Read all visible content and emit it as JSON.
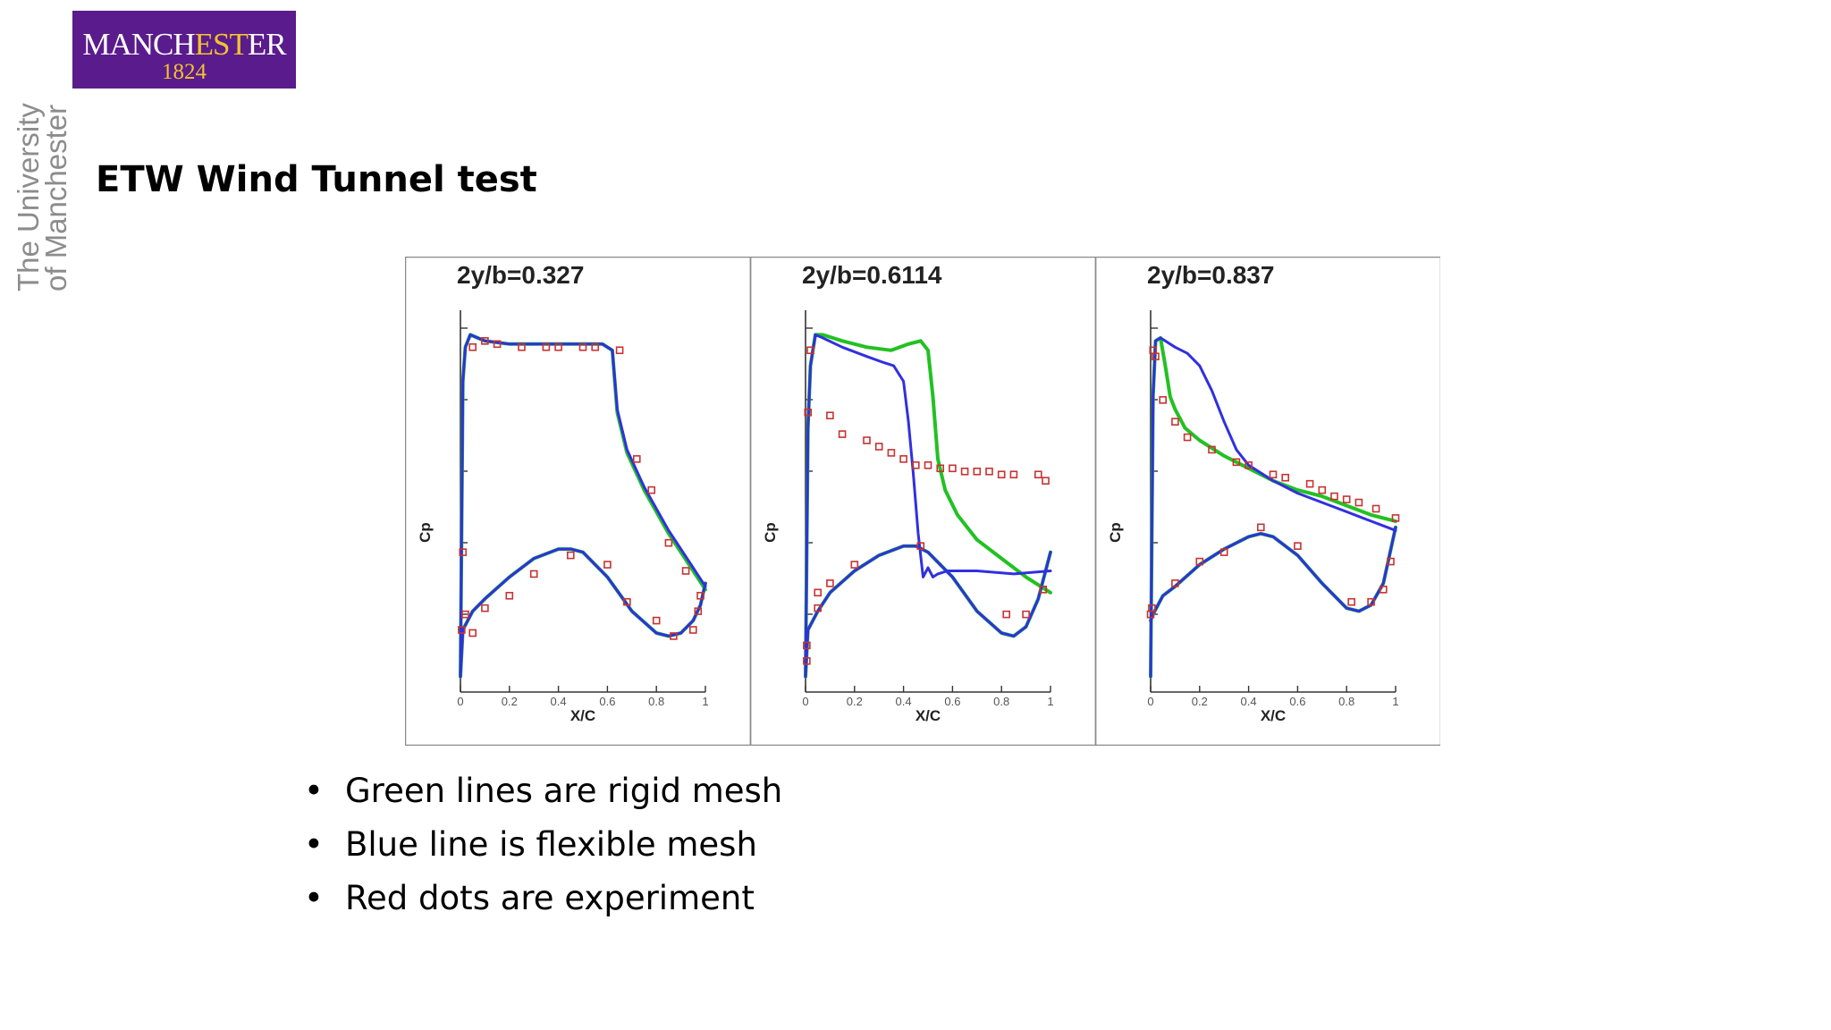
{
  "logo": {
    "name_left": "MANCH",
    "name_mid": "EST",
    "name_right": "ER",
    "year": "1824"
  },
  "side_text": {
    "line1": "The University",
    "line2": "of Manchester"
  },
  "slide_title": "ETW Wind Tunnel test",
  "bullets": [
    "Green lines are rigid mesh",
    "Blue line is flexible mesh",
    "Red dots are experiment"
  ],
  "colors": {
    "rigid": "#22c122",
    "flexible": "#3030e0",
    "experiment": "#c83232",
    "logo_bg": "#5a1b8c"
  },
  "chart_data": [
    {
      "type": "line",
      "title": "2y/b=0.327",
      "xlabel": "X/C",
      "ylabel": "Cp",
      "xlim": [
        0,
        1
      ],
      "xticks": [
        "0",
        "0.2",
        "0.4",
        "0.6",
        "0.8",
        "1"
      ],
      "grid": false,
      "series": [
        {
          "kind": "rigid-upper",
          "x": [
            0,
            0.01,
            0.02,
            0.04,
            0.07,
            0.1,
            0.2,
            0.3,
            0.4,
            0.5,
            0.58,
            0.62,
            0.64,
            0.68,
            0.75,
            0.85,
            0.95,
            1.0
          ],
          "y": [
            -0.1,
            0.85,
            0.96,
            1.0,
            0.99,
            0.98,
            0.97,
            0.97,
            0.97,
            0.97,
            0.97,
            0.95,
            0.75,
            0.62,
            0.5,
            0.36,
            0.24,
            0.18
          ]
        },
        {
          "kind": "rigid-lower",
          "x": [
            0,
            0.01,
            0.05,
            0.1,
            0.2,
            0.3,
            0.4,
            0.45,
            0.5,
            0.6,
            0.7,
            0.8,
            0.85,
            0.9,
            0.95,
            0.98,
            1.0
          ],
          "y": [
            -0.1,
            0.05,
            0.11,
            0.15,
            0.22,
            0.28,
            0.31,
            0.31,
            0.3,
            0.22,
            0.11,
            0.04,
            0.03,
            0.04,
            0.08,
            0.13,
            0.2
          ]
        },
        {
          "kind": "flexible-upper",
          "x": [
            0,
            0.01,
            0.02,
            0.04,
            0.07,
            0.1,
            0.2,
            0.3,
            0.4,
            0.5,
            0.58,
            0.62,
            0.64,
            0.68,
            0.75,
            0.85,
            0.95,
            1.0
          ],
          "y": [
            -0.1,
            0.85,
            0.96,
            1.0,
            0.99,
            0.98,
            0.97,
            0.97,
            0.97,
            0.97,
            0.97,
            0.95,
            0.76,
            0.63,
            0.51,
            0.37,
            0.25,
            0.19
          ]
        },
        {
          "kind": "flexible-lower",
          "x": [
            0,
            0.01,
            0.05,
            0.1,
            0.2,
            0.3,
            0.4,
            0.45,
            0.5,
            0.6,
            0.7,
            0.8,
            0.85,
            0.9,
            0.95,
            0.98,
            1.0
          ],
          "y": [
            -0.1,
            0.05,
            0.11,
            0.15,
            0.22,
            0.28,
            0.31,
            0.31,
            0.3,
            0.22,
            0.11,
            0.04,
            0.03,
            0.04,
            0.08,
            0.13,
            0.2
          ]
        },
        {
          "kind": "experiment",
          "x": [
            0.005,
            0.01,
            0.02,
            0.05,
            0.05,
            0.1,
            0.1,
            0.15,
            0.2,
            0.25,
            0.3,
            0.35,
            0.4,
            0.45,
            0.5,
            0.55,
            0.6,
            0.65,
            0.68,
            0.72,
            0.78,
            0.8,
            0.85,
            0.87,
            0.92,
            0.95,
            0.97,
            0.98
          ],
          "y": [
            0.05,
            0.3,
            0.1,
            0.04,
            0.96,
            0.98,
            0.12,
            0.97,
            0.16,
            0.96,
            0.23,
            0.96,
            0.96,
            0.29,
            0.96,
            0.96,
            0.26,
            0.95,
            0.14,
            0.6,
            0.5,
            0.08,
            0.33,
            0.03,
            0.24,
            0.05,
            0.11,
            0.16
          ]
        }
      ]
    },
    {
      "type": "line",
      "title": "2y/b=0.6114",
      "xlabel": "X/C",
      "ylabel": "Cp",
      "xlim": [
        0,
        1
      ],
      "xticks": [
        "0",
        "0.2",
        "0.4",
        "0.6",
        "0.8",
        "1"
      ],
      "grid": false,
      "series": [
        {
          "kind": "rigid-upper",
          "x": [
            0,
            0.01,
            0.02,
            0.04,
            0.07,
            0.15,
            0.25,
            0.35,
            0.42,
            0.47,
            0.5,
            0.52,
            0.54,
            0.57,
            0.62,
            0.7,
            0.8,
            0.9,
            1.0
          ],
          "y": [
            -0.1,
            0.7,
            0.9,
            1.0,
            1.0,
            0.98,
            0.96,
            0.95,
            0.97,
            0.98,
            0.95,
            0.8,
            0.6,
            0.5,
            0.42,
            0.34,
            0.28,
            0.22,
            0.17
          ]
        },
        {
          "kind": "rigid-lower",
          "x": [
            0,
            0.01,
            0.05,
            0.1,
            0.2,
            0.3,
            0.4,
            0.45,
            0.5,
            0.6,
            0.7,
            0.8,
            0.85,
            0.9,
            0.95,
            1.0
          ],
          "y": [
            -0.1,
            0.05,
            0.11,
            0.17,
            0.24,
            0.29,
            0.32,
            0.32,
            0.3,
            0.22,
            0.11,
            0.04,
            0.03,
            0.06,
            0.15,
            0.3
          ]
        },
        {
          "kind": "flexible-upper",
          "x": [
            0,
            0.01,
            0.02,
            0.04,
            0.07,
            0.15,
            0.25,
            0.32,
            0.36,
            0.4,
            0.42,
            0.44,
            0.46,
            0.48,
            0.5,
            0.52,
            0.54,
            0.58,
            0.7,
            0.85,
            1.0
          ],
          "y": [
            -0.1,
            0.7,
            0.9,
            1.0,
            0.99,
            0.96,
            0.93,
            0.91,
            0.9,
            0.85,
            0.72,
            0.55,
            0.36,
            0.22,
            0.25,
            0.22,
            0.23,
            0.24,
            0.24,
            0.23,
            0.24
          ]
        },
        {
          "kind": "flexible-lower",
          "x": [
            0,
            0.01,
            0.05,
            0.1,
            0.2,
            0.3,
            0.4,
            0.45,
            0.5,
            0.6,
            0.7,
            0.8,
            0.85,
            0.9,
            0.95,
            1.0
          ],
          "y": [
            -0.1,
            0.05,
            0.11,
            0.17,
            0.24,
            0.29,
            0.32,
            0.32,
            0.3,
            0.22,
            0.11,
            0.04,
            0.03,
            0.06,
            0.15,
            0.3
          ]
        },
        {
          "kind": "experiment",
          "x": [
            0.005,
            0.005,
            0.01,
            0.02,
            0.05,
            0.05,
            0.1,
            0.1,
            0.15,
            0.2,
            0.25,
            0.3,
            0.35,
            0.4,
            0.45,
            0.47,
            0.5,
            0.55,
            0.6,
            0.65,
            0.7,
            0.75,
            0.8,
            0.82,
            0.85,
            0.9,
            0.95,
            0.97,
            0.98
          ],
          "y": [
            -0.05,
            0.0,
            0.75,
            0.95,
            0.12,
            0.17,
            0.74,
            0.2,
            0.68,
            0.26,
            0.66,
            0.64,
            0.62,
            0.6,
            0.58,
            0.32,
            0.58,
            0.57,
            0.57,
            0.56,
            0.56,
            0.56,
            0.55,
            0.1,
            0.55,
            0.1,
            0.55,
            0.18,
            0.53
          ]
        }
      ]
    },
    {
      "type": "line",
      "title": "2y/b=0.837",
      "xlabel": "X/C",
      "ylabel": "Cp",
      "xlim": [
        0,
        1
      ],
      "xticks": [
        "0",
        "0.2",
        "0.4",
        "0.6",
        "0.8",
        "1"
      ],
      "grid": false,
      "series": [
        {
          "kind": "rigid-upper",
          "x": [
            0,
            0.01,
            0.02,
            0.04,
            0.06,
            0.08,
            0.1,
            0.14,
            0.2,
            0.3,
            0.4,
            0.5,
            0.6,
            0.7,
            0.8,
            0.9,
            1.0
          ],
          "y": [
            -0.1,
            0.8,
            0.98,
            0.99,
            0.9,
            0.8,
            0.76,
            0.7,
            0.66,
            0.61,
            0.57,
            0.53,
            0.5,
            0.48,
            0.45,
            0.42,
            0.4
          ]
        },
        {
          "kind": "rigid-lower",
          "x": [
            0,
            0.01,
            0.05,
            0.1,
            0.2,
            0.3,
            0.4,
            0.45,
            0.5,
            0.6,
            0.7,
            0.8,
            0.85,
            0.9,
            0.95,
            1.0
          ],
          "y": [
            0.08,
            0.1,
            0.16,
            0.19,
            0.26,
            0.31,
            0.35,
            0.36,
            0.35,
            0.29,
            0.2,
            0.12,
            0.11,
            0.13,
            0.2,
            0.38
          ]
        },
        {
          "kind": "flexible-upper",
          "x": [
            0,
            0.01,
            0.02,
            0.04,
            0.06,
            0.1,
            0.15,
            0.2,
            0.25,
            0.3,
            0.35,
            0.4,
            0.5,
            0.6,
            0.7,
            0.8,
            0.9,
            1.0
          ],
          "y": [
            -0.1,
            0.8,
            0.98,
            0.99,
            0.98,
            0.96,
            0.94,
            0.9,
            0.82,
            0.72,
            0.63,
            0.58,
            0.53,
            0.49,
            0.46,
            0.43,
            0.4,
            0.37
          ]
        },
        {
          "kind": "flexible-lower",
          "x": [
            0,
            0.01,
            0.05,
            0.1,
            0.2,
            0.3,
            0.4,
            0.45,
            0.5,
            0.6,
            0.7,
            0.8,
            0.85,
            0.9,
            0.95,
            1.0
          ],
          "y": [
            0.08,
            0.1,
            0.16,
            0.19,
            0.26,
            0.31,
            0.35,
            0.36,
            0.35,
            0.29,
            0.2,
            0.12,
            0.11,
            0.13,
            0.2,
            0.38
          ]
        },
        {
          "kind": "experiment",
          "x": [
            0.0,
            0.005,
            0.01,
            0.02,
            0.05,
            0.1,
            0.1,
            0.15,
            0.2,
            0.25,
            0.3,
            0.35,
            0.4,
            0.45,
            0.5,
            0.55,
            0.6,
            0.65,
            0.7,
            0.75,
            0.8,
            0.82,
            0.85,
            0.9,
            0.92,
            0.95,
            0.98,
            1.0
          ],
          "y": [
            0.1,
            0.12,
            0.95,
            0.93,
            0.79,
            0.72,
            0.2,
            0.67,
            0.27,
            0.63,
            0.3,
            0.59,
            0.58,
            0.38,
            0.55,
            0.54,
            0.32,
            0.52,
            0.5,
            0.48,
            0.47,
            0.14,
            0.46,
            0.14,
            0.44,
            0.18,
            0.27,
            0.41
          ]
        }
      ]
    }
  ]
}
